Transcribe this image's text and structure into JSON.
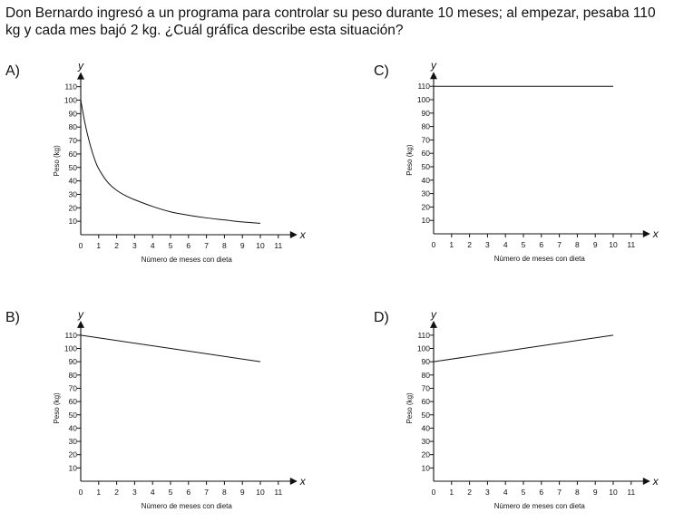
{
  "question": "Don Bernardo ingresó a un programa para controlar su peso durante 10 meses; al empezar, pesaba 110 kg y cada mes bajó 2 kg. ¿Cuál gráfica describe esta situación?",
  "chart_data": [
    {
      "option": "A)",
      "type": "line",
      "xlabel": "Número de meses con dieta",
      "ylabel": "Peso (kg)",
      "x_axis_letter": "x",
      "y_axis_letter": "y",
      "x_ticks": [
        0,
        1,
        2,
        3,
        4,
        5,
        6,
        7,
        8,
        9,
        10,
        11
      ],
      "y_ticks": [
        10,
        20,
        30,
        40,
        50,
        60,
        70,
        80,
        90,
        100,
        110
      ],
      "xlim": [
        0,
        11
      ],
      "ylim": [
        0,
        110
      ],
      "x": [
        0,
        0.25,
        0.5,
        0.75,
        1,
        1.5,
        2,
        2.5,
        3,
        4,
        5,
        6,
        7,
        8,
        9,
        10
      ],
      "y": [
        100,
        82,
        68,
        57,
        49,
        39,
        33,
        29,
        26,
        21,
        17,
        14.5,
        12.5,
        11,
        9.5,
        8.5
      ]
    },
    {
      "option": "B)",
      "type": "line",
      "xlabel": "Número de meses con dieta",
      "ylabel": "Peso (kg)",
      "x_axis_letter": "x",
      "y_axis_letter": "y",
      "x_ticks": [
        0,
        1,
        2,
        3,
        4,
        5,
        6,
        7,
        8,
        9,
        10,
        11
      ],
      "y_ticks": [
        10,
        20,
        30,
        40,
        50,
        60,
        70,
        80,
        90,
        100,
        110
      ],
      "xlim": [
        0,
        11
      ],
      "ylim": [
        0,
        110
      ],
      "x": [
        0,
        10
      ],
      "y": [
        110,
        90
      ]
    },
    {
      "option": "C)",
      "type": "line",
      "xlabel": "Número de meses con dieta",
      "ylabel": "Peso (kg)",
      "x_axis_letter": "x",
      "y_axis_letter": "y",
      "x_ticks": [
        0,
        1,
        2,
        3,
        4,
        5,
        6,
        7,
        8,
        9,
        10,
        11
      ],
      "y_ticks": [
        10,
        20,
        30,
        40,
        50,
        60,
        70,
        80,
        90,
        100,
        110
      ],
      "xlim": [
        0,
        11
      ],
      "ylim": [
        0,
        110
      ],
      "x": [
        0,
        10
      ],
      "y": [
        110,
        110
      ]
    },
    {
      "option": "D)",
      "type": "line",
      "xlabel": "Número de meses con dieta",
      "ylabel": "Peso (kg)",
      "x_axis_letter": "x",
      "y_axis_letter": "y",
      "x_ticks": [
        0,
        1,
        2,
        3,
        4,
        5,
        6,
        7,
        8,
        9,
        10,
        11
      ],
      "y_ticks": [
        10,
        20,
        30,
        40,
        50,
        60,
        70,
        80,
        90,
        100,
        110
      ],
      "xlim": [
        0,
        11
      ],
      "ylim": [
        0,
        110
      ],
      "x": [
        0,
        10
      ],
      "y": [
        90,
        110
      ]
    }
  ]
}
